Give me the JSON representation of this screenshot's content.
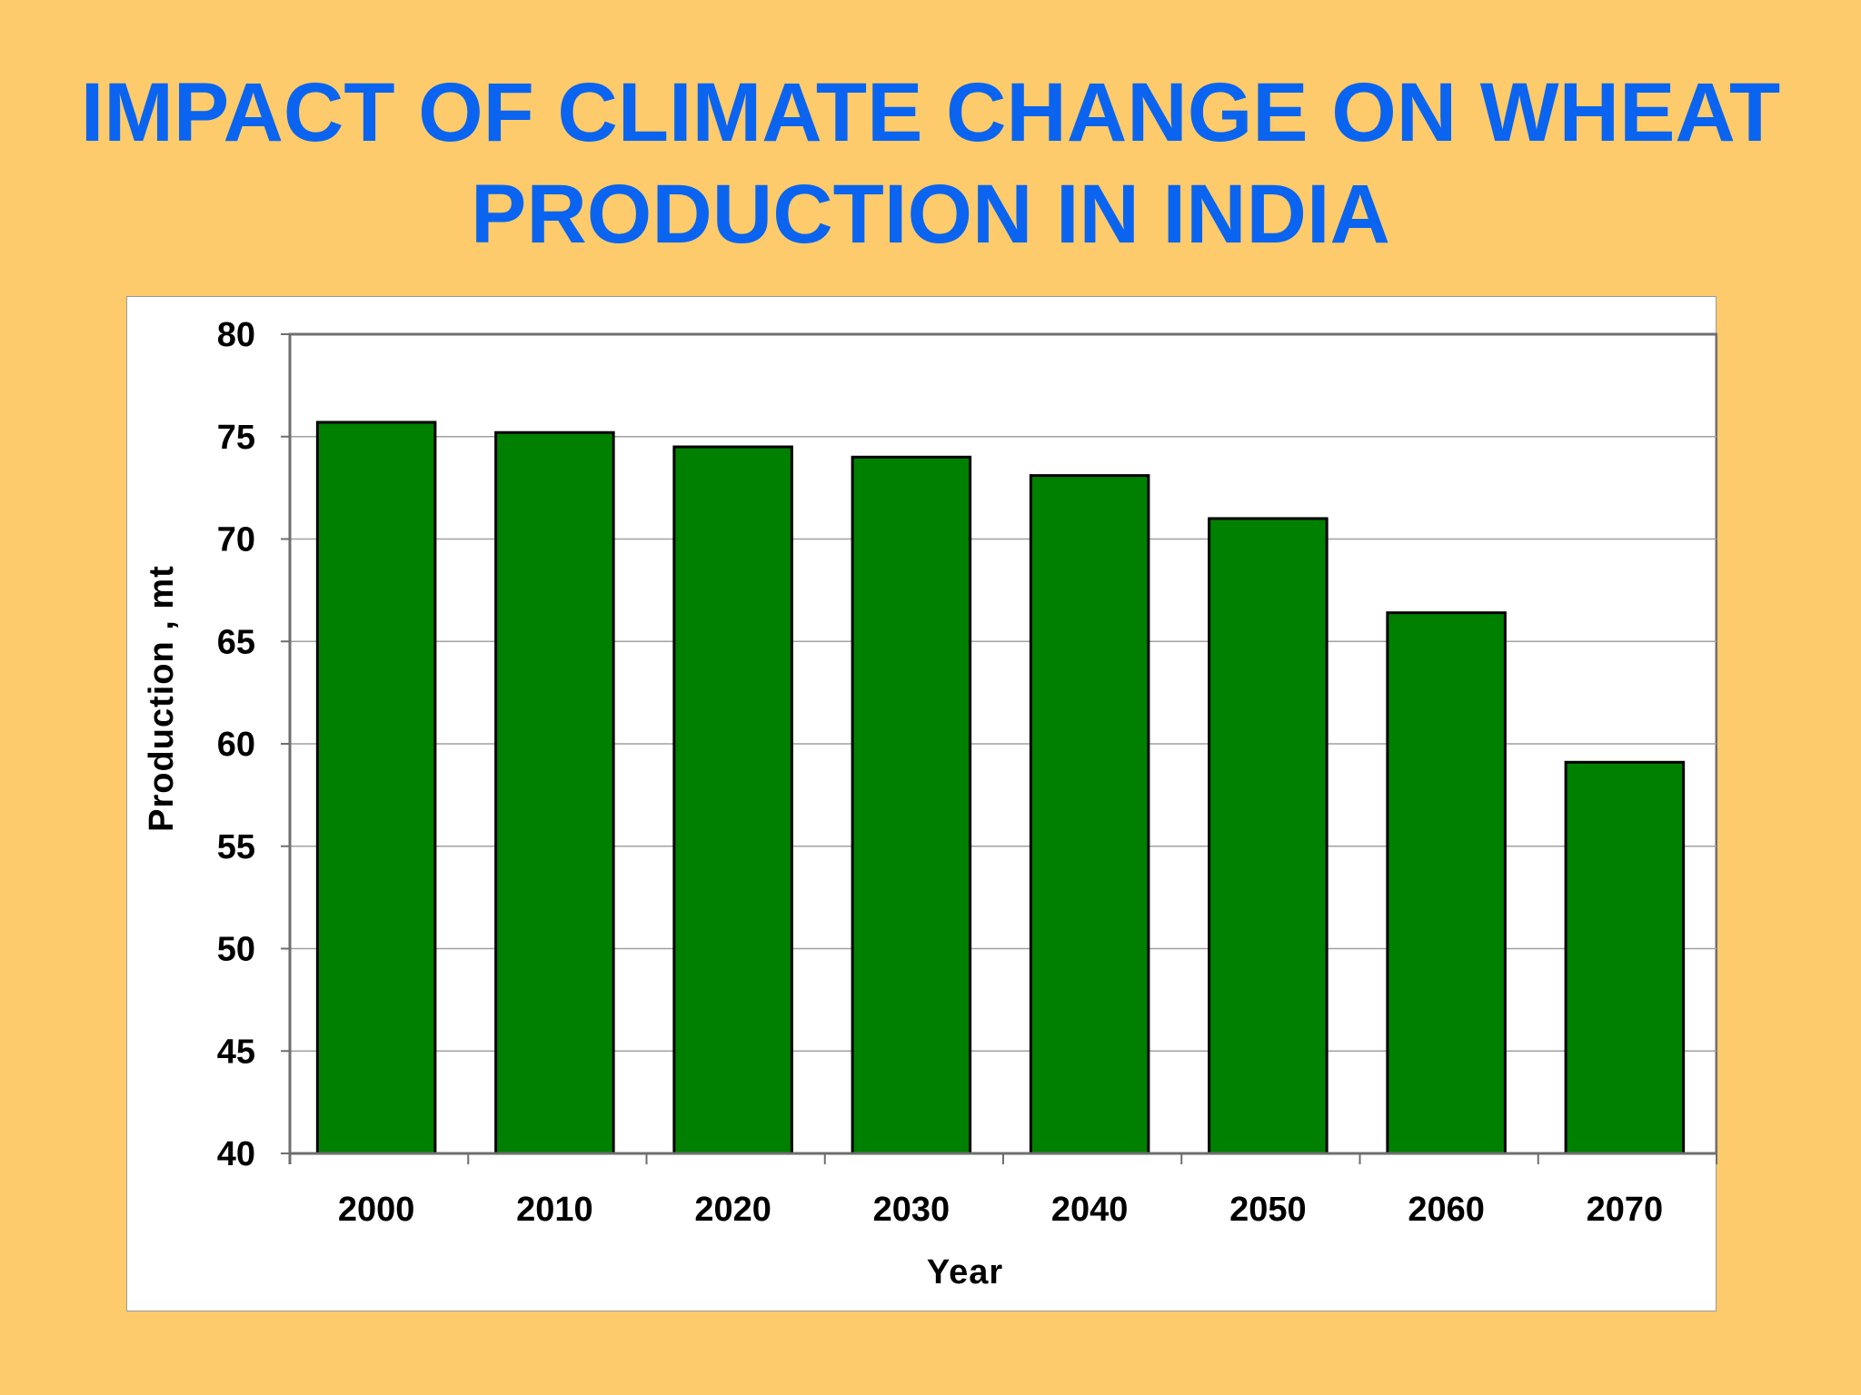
{
  "title": {
    "line1": "IMPACT OF CLIMATE CHANGE ON WHEAT",
    "line2": "PRODUCTION IN INDIA"
  },
  "colors": {
    "background": "#FDCB6B",
    "title": "#0A64F0",
    "bar_fill": "#008000",
    "bar_stroke": "#000000",
    "plot_background": "#FFFFFF",
    "gridline": "#A0A0A0"
  },
  "chart_data": {
    "type": "bar",
    "categories": [
      "2000",
      "2010",
      "2020",
      "2030",
      "2040",
      "2050",
      "2060",
      "2070"
    ],
    "values": [
      75.7,
      75.2,
      74.5,
      74.0,
      73.1,
      71.0,
      66.4,
      59.1
    ],
    "xlabel": "Year",
    "ylabel": "Production , mt",
    "ylim": [
      40,
      80
    ],
    "yticks": [
      40,
      45,
      50,
      55,
      60,
      65,
      70,
      75,
      80
    ],
    "grid": true,
    "legend": "none"
  }
}
